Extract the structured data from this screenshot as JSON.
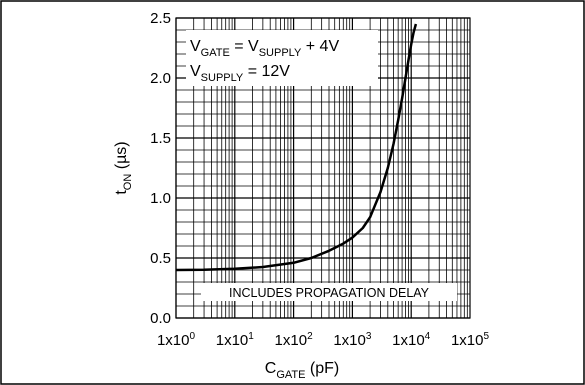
{
  "chart_data": {
    "type": "line",
    "x_scale": "log",
    "xlim": [
      1,
      100000
    ],
    "ylim": [
      0,
      2.5
    ],
    "grid": true,
    "xlabel": {
      "main": "C",
      "sub": "GATE",
      "tail": " (pF)"
    },
    "ylabel": {
      "main": "t",
      "sub": "ON",
      "tail": " (µs)"
    },
    "yticks": [
      "0.0",
      "0.5",
      "1.0",
      "1.5",
      "2.0",
      "2.5"
    ],
    "ytick_values": [
      0,
      0.5,
      1.0,
      1.5,
      2.0,
      2.5
    ],
    "xticks": [
      {
        "value": 1,
        "base": "1x10",
        "exp": "0"
      },
      {
        "value": 10,
        "base": "1x10",
        "exp": "1"
      },
      {
        "value": 100,
        "base": "1x10",
        "exp": "2"
      },
      {
        "value": 1000,
        "base": "1x10",
        "exp": "3"
      },
      {
        "value": 10000,
        "base": "1x10",
        "exp": "4"
      },
      {
        "value": 100000,
        "base": "1x10",
        "exp": "5"
      }
    ],
    "annotations": {
      "line1": {
        "a": "V",
        "a_sub": "GATE",
        "b": " = V",
        "b_sub": "SUPPLY",
        "c": " + 4V"
      },
      "line2": {
        "a": "V",
        "a_sub": "SUPPLY",
        "b": " = 12V"
      },
      "note": "INCLUDES PROPAGATION DELAY"
    },
    "series": [
      {
        "x": [
          1,
          3,
          10,
          30,
          100,
          200,
          400,
          700,
          1000,
          1500,
          2000,
          3000,
          4000,
          5000,
          6000,
          7000,
          8000,
          9000,
          10000,
          11000,
          12000
        ],
        "y": [
          0.4,
          0.402,
          0.41,
          0.425,
          0.46,
          0.5,
          0.56,
          0.62,
          0.67,
          0.75,
          0.84,
          1.05,
          1.25,
          1.45,
          1.65,
          1.83,
          2.0,
          2.15,
          2.28,
          2.38,
          2.45
        ]
      }
    ]
  }
}
